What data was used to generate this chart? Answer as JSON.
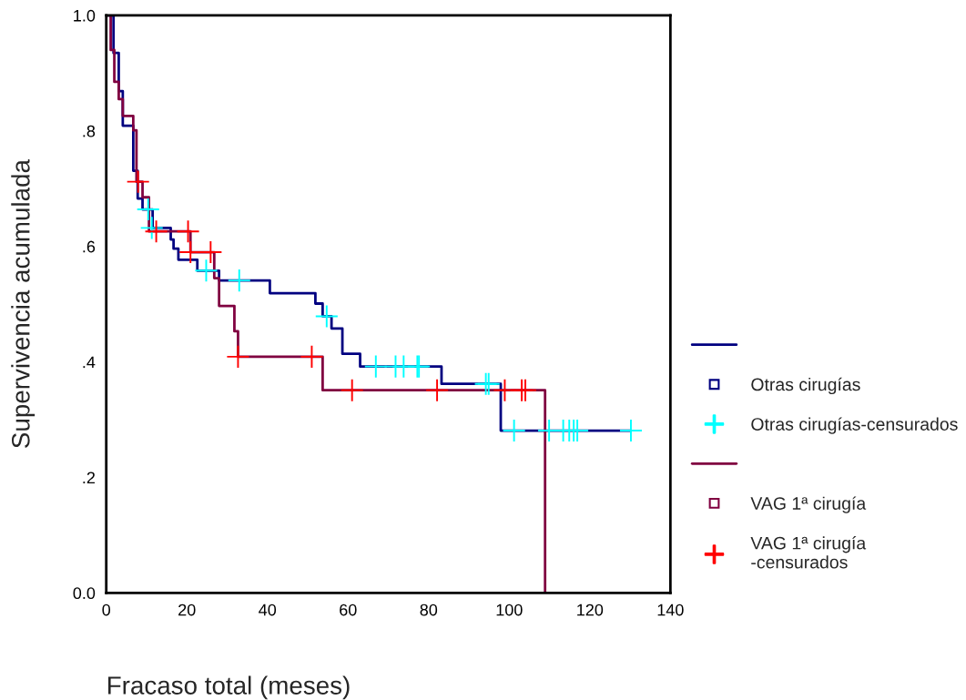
{
  "chart_data": {
    "type": "step",
    "xlabel": "Fracaso total (meses)",
    "ylabel": "Supervivencia acumulada",
    "xlim": [
      0,
      140
    ],
    "xticks": [
      0,
      20,
      40,
      60,
      80,
      100,
      120,
      140
    ],
    "ylim": [
      0,
      1.0
    ],
    "yticks": [
      {
        "value": 0,
        "label": "0.0"
      },
      {
        "value": 0.2,
        "label": ".2"
      },
      {
        "value": 0.4,
        "label": ".4"
      },
      {
        "value": 0.6,
        "label": ".6"
      },
      {
        "value": 0.8,
        "label": ".8"
      },
      {
        "value": 1.0,
        "label": "1.0"
      }
    ],
    "grid": false,
    "legend": "right",
    "series": [
      {
        "name": "Otras cirugías",
        "color": "#000080",
        "x": [
          0,
          1.8,
          3.1,
          4.1,
          6.7,
          7.8,
          9.0,
          11.5,
          16.0,
          16.7,
          17.9,
          22.6,
          28.0,
          40.6,
          51.9,
          53.7,
          55.9,
          58.6,
          63.0,
          83.2,
          97.9,
          130.2
        ],
        "values": [
          1.0,
          0.935,
          0.869,
          0.809,
          0.731,
          0.683,
          0.664,
          0.632,
          0.612,
          0.596,
          0.577,
          0.558,
          0.541,
          0.519,
          0.501,
          0.479,
          0.458,
          0.414,
          0.392,
          0.362,
          0.281,
          0.281
        ]
      },
      {
        "name": "Otras cirugías-censurados",
        "type": "scatter",
        "marker": "cross",
        "color": "#00ffff",
        "x": [
          10.4,
          11.3,
          24.8,
          33.0,
          54.7,
          66.9,
          71.8,
          73.8,
          77.2,
          77.6,
          94.2,
          94.9,
          101.2,
          109.9,
          113.4,
          114.9,
          116.0,
          116.9,
          130.2
        ],
        "values": [
          0.664,
          0.632,
          0.558,
          0.541,
          0.479,
          0.392,
          0.392,
          0.392,
          0.392,
          0.392,
          0.362,
          0.362,
          0.281,
          0.281,
          0.281,
          0.281,
          0.281,
          0.281,
          0.281
        ]
      },
      {
        "name": "VAG 1ª cirugía",
        "color": "#800040",
        "x": [
          0,
          1.1,
          2.0,
          3.1,
          4.1,
          6.7,
          7.5,
          9.0,
          10.6,
          20.9,
          26.8,
          28.0,
          31.8,
          32.7,
          53.7,
          108.9
        ],
        "values": [
          1.0,
          0.94,
          0.885,
          0.855,
          0.826,
          0.801,
          0.712,
          0.685,
          0.626,
          0.59,
          0.545,
          0.497,
          0.453,
          0.409,
          0.351,
          0.0
        ]
      },
      {
        "name": "VAG 1ª cirugía\n-censurados",
        "type": "scatter",
        "marker": "cross",
        "color": "#ff0000",
        "x": [
          7.9,
          12.4,
          20.3,
          20.9,
          25.9,
          32.7,
          51.0,
          61.0,
          82.1,
          98.9,
          103.1,
          104.0
        ],
        "values": [
          0.712,
          0.626,
          0.626,
          0.59,
          0.59,
          0.409,
          0.409,
          0.351,
          0.351,
          0.351,
          0.351,
          0.351
        ]
      }
    ]
  }
}
